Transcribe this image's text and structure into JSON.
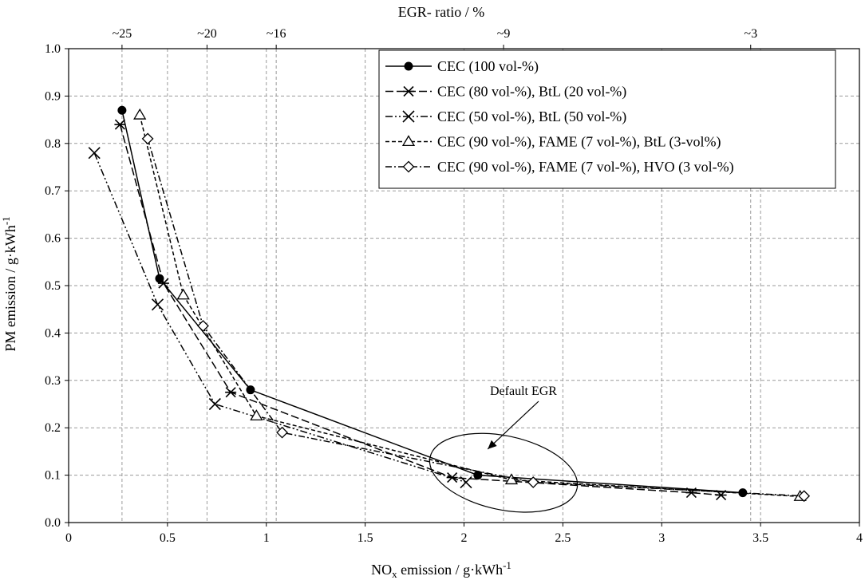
{
  "chart_data": {
    "type": "line",
    "xlabel_main": "NO",
    "xlabel_sub": "x",
    "xlabel_rest": " emission  / g·kWh",
    "xlabel_sup": "-1",
    "ylabel_main": "PM emission  / g·kWh",
    "ylabel_sup": "-1",
    "top_axis_label": "EGR- ratio / %",
    "top_ticks": [
      {
        "x": 0.27,
        "label": "~25"
      },
      {
        "x": 0.7,
        "label": "~20"
      },
      {
        "x": 1.05,
        "label": "~16"
      },
      {
        "x": 2.2,
        "label": "~9"
      },
      {
        "x": 3.45,
        "label": "~3"
      }
    ],
    "xlim": [
      0,
      4
    ],
    "ylim": [
      0,
      1.0
    ],
    "xticks": [
      0,
      0.5,
      1,
      1.5,
      2,
      2.5,
      3,
      3.5,
      4
    ],
    "xtick_labels": [
      "0",
      "0.5",
      "1",
      "1.5",
      "2",
      "2.5",
      "3",
      "3.5",
      "4"
    ],
    "yticks": [
      0,
      0.1,
      0.2,
      0.3,
      0.4,
      0.5,
      0.6,
      0.7,
      0.8,
      0.9,
      1.0
    ],
    "ytick_labels": [
      "0.0",
      "0.1",
      "0.2",
      "0.3",
      "0.4",
      "0.5",
      "0.6",
      "0.7",
      "0.8",
      "0.9",
      "1.0"
    ],
    "grid": true,
    "legend_position": "top-right",
    "annotation": {
      "text": "Default EGR",
      "ellipse_center": [
        2.2,
        0.105
      ],
      "ellipse_radii": [
        0.38,
        0.078
      ],
      "arrow_to": [
        2.12,
        0.155
      ]
    },
    "series": [
      {
        "name": "CEC (100 vol-%)",
        "marker": "dot",
        "dash": "solid",
        "x": [
          0.27,
          0.46,
          0.92,
          2.07,
          3.41
        ],
        "y": [
          0.87,
          0.515,
          0.28,
          0.1,
          0.063
        ]
      },
      {
        "name": "CEC (80 vol-%), BtL (20 vol-%)",
        "marker": "star",
        "dash": "longdash",
        "x": [
          0.26,
          0.48,
          0.82,
          1.94,
          3.15,
          3.3
        ],
        "y": [
          0.84,
          0.505,
          0.275,
          0.095,
          0.063,
          0.058
        ]
      },
      {
        "name": "CEC (50 vol-%), BtL (50 vol-%)",
        "marker": "x",
        "dash": "dashdotdot",
        "x": [
          0.13,
          0.45,
          0.74,
          2.01
        ],
        "y": [
          0.78,
          0.46,
          0.25,
          0.085
        ]
      },
      {
        "name": "CEC (90 vol-%), FAME (7 vol-%), BtL (3-vol%)",
        "marker": "triangle",
        "dash": "shortdash",
        "x": [
          0.36,
          0.58,
          0.95,
          2.24,
          3.7
        ],
        "y": [
          0.86,
          0.48,
          0.225,
          0.09,
          0.055
        ]
      },
      {
        "name": "CEC (90 vol-%), FAME (7 vol-%), HVO (3 vol-%)",
        "marker": "diamond",
        "dash": "dashdot",
        "x": [
          0.4,
          0.68,
          1.08,
          2.35,
          3.72
        ],
        "y": [
          0.81,
          0.415,
          0.19,
          0.085,
          0.056
        ]
      }
    ]
  }
}
